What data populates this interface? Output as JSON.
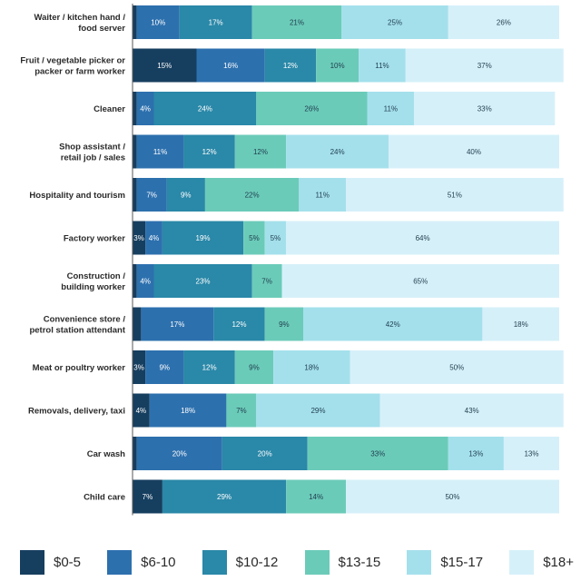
{
  "chart_data": {
    "type": "bar",
    "orientation": "horizontal",
    "stacked": true,
    "percent_stacked": true,
    "categories": [
      [
        "Waiter / kitchen hand /",
        "food server"
      ],
      [
        "Fruit / vegetable picker or",
        "packer or farm worker"
      ],
      [
        "Cleaner"
      ],
      [
        "Shop assistant /",
        "retail job / sales"
      ],
      [
        "Hospitality and tourism"
      ],
      [
        "Factory worker"
      ],
      [
        "Construction /",
        "building worker"
      ],
      [
        "Convenience store /",
        "petrol station attendant"
      ],
      [
        "Meat or poultry worker"
      ],
      [
        "Removals, delivery, taxi"
      ],
      [
        "Car wash"
      ],
      [
        "Child care"
      ]
    ],
    "series": [
      {
        "name": "$0-5",
        "color": "#163e5f",
        "label_color": "#ffffff",
        "values": [
          1,
          15,
          1,
          1,
          1,
          3,
          1,
          2,
          3,
          4,
          1,
          7
        ],
        "labels": [
          "",
          "15%",
          "",
          "",
          "",
          "3%",
          "",
          "",
          "3%",
          "4%",
          "",
          "7%"
        ]
      },
      {
        "name": "$6-10",
        "color": "#2d70ae",
        "label_color": "#ffffff",
        "values": [
          10,
          16,
          4,
          11,
          7,
          4,
          4,
          17,
          9,
          18,
          20,
          0
        ],
        "labels": [
          "10%",
          "16%",
          "4%",
          "11%",
          "7%",
          "4%",
          "4%",
          "17%",
          "9%",
          "18%",
          "20%",
          ""
        ]
      },
      {
        "name": "$10-12",
        "color": "#2a88a8",
        "label_color": "#ffffff",
        "values": [
          17,
          12,
          24,
          12,
          9,
          19,
          23,
          12,
          12,
          0,
          20,
          29
        ],
        "labels": [
          "17%",
          "12%",
          "24%",
          "12%",
          "9%",
          "19%",
          "23%",
          "12%",
          "12%",
          "",
          "20%",
          "29%"
        ]
      },
      {
        "name": "$13-15",
        "color": "#6bcbb9",
        "label_color": "#1f3d4d",
        "values": [
          21,
          10,
          26,
          12,
          22,
          5,
          7,
          9,
          9,
          7,
          33,
          14
        ],
        "labels": [
          "21%",
          "10%",
          "26%",
          "12%",
          "22%",
          "5%",
          "7%",
          "9%",
          "9%",
          "7%",
          "33%",
          "14%"
        ]
      },
      {
        "name": "$15-17",
        "color": "#a4e0ec",
        "label_color": "#1f3d4d",
        "values": [
          25,
          11,
          11,
          24,
          11,
          5,
          0,
          42,
          18,
          29,
          13,
          0
        ],
        "labels": [
          "25%",
          "11%",
          "11%",
          "24%",
          "11%",
          "5%",
          "",
          "42%",
          "18%",
          "29%",
          "13%",
          ""
        ]
      },
      {
        "name": "$18+",
        "color": "#d6f0f9",
        "label_color": "#1f3d4d",
        "values": [
          26,
          37,
          33,
          40,
          51,
          64,
          65,
          18,
          50,
          43,
          13,
          50
        ],
        "labels": [
          "26%",
          "37%",
          "33%",
          "40%",
          "51%",
          "64%",
          "65%",
          "18%",
          "50%",
          "43%",
          "13%",
          "50%"
        ]
      }
    ],
    "title": "",
    "xlabel": "",
    "ylabel": "",
    "xlim": [
      0,
      100
    ],
    "grid": false,
    "legend_position": "bottom"
  }
}
